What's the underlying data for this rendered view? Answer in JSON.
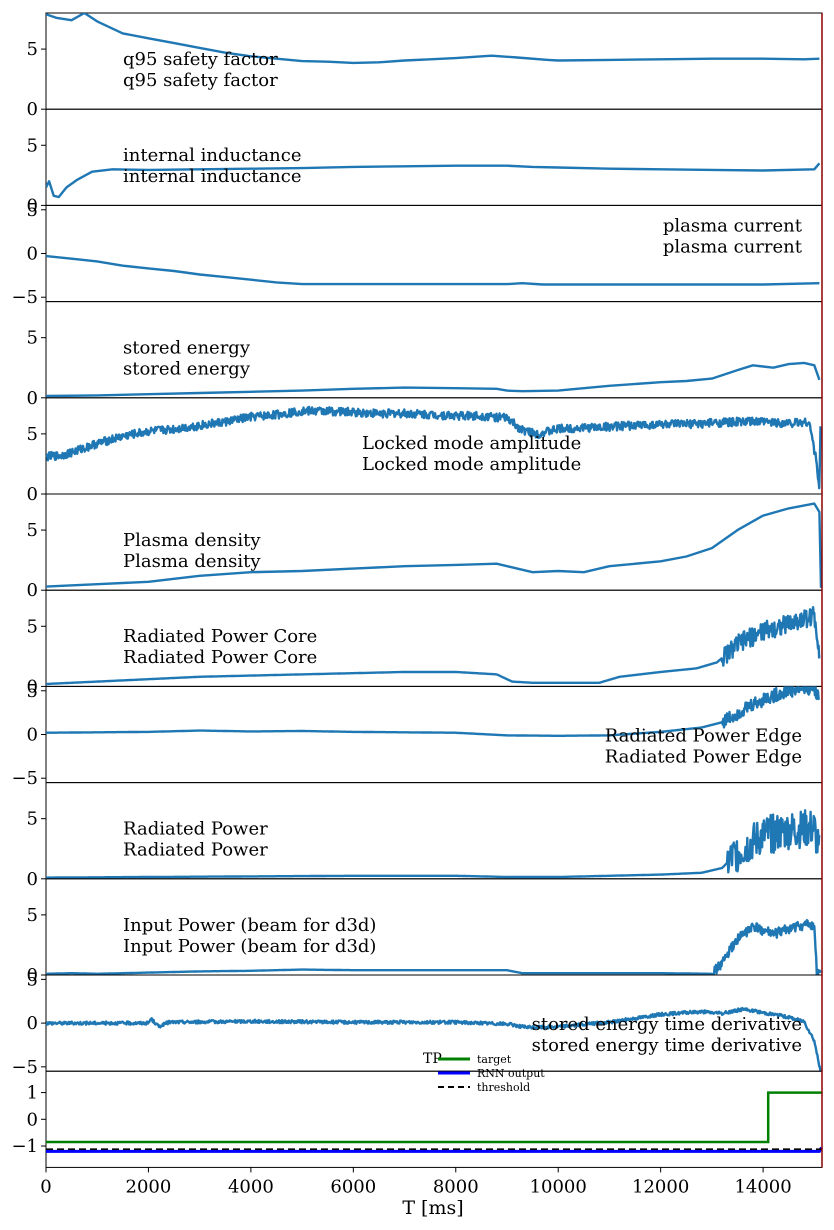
{
  "chart_data": {
    "type": "line",
    "xlabel": "T [ms]",
    "xlim": [
      0,
      15150
    ],
    "xticks": [
      0,
      2000,
      4000,
      6000,
      8000,
      10000,
      12000,
      14000
    ],
    "vline_x": 15150,
    "colors": {
      "signal": "#1f77b4",
      "target": "#008000",
      "rnn": "#0000ff",
      "threshold": "#000000",
      "vline": "#8b0000"
    },
    "panels": [
      {
        "label": "q95 safety factor",
        "label_pos": "upper-left",
        "ylim": [
          0,
          8
        ],
        "yticks": [
          0,
          5
        ],
        "points": [
          [
            0,
            7.9
          ],
          [
            200,
            7.6
          ],
          [
            500,
            7.4
          ],
          [
            750,
            8
          ],
          [
            1000,
            7.3
          ],
          [
            1500,
            6.3
          ],
          [
            2000,
            5.9
          ],
          [
            2500,
            5.5
          ],
          [
            3000,
            5.1
          ],
          [
            3500,
            4.7
          ],
          [
            4000,
            4.4
          ],
          [
            4500,
            4.2
          ],
          [
            5000,
            4.0
          ],
          [
            5500,
            3.95
          ],
          [
            6000,
            3.85
          ],
          [
            6500,
            3.9
          ],
          [
            7000,
            4.05
          ],
          [
            7500,
            4.15
          ],
          [
            8000,
            4.25
          ],
          [
            8700,
            4.45
          ],
          [
            9200,
            4.3
          ],
          [
            9800,
            4.1
          ],
          [
            10000,
            4.05
          ],
          [
            11000,
            4.1
          ],
          [
            12000,
            4.15
          ],
          [
            13000,
            4.2
          ],
          [
            14000,
            4.2
          ],
          [
            14800,
            4.15
          ],
          [
            15100,
            4.2
          ]
        ]
      },
      {
        "label": "internal inductance",
        "label_pos": "upper-left",
        "ylim": [
          0,
          8
        ],
        "yticks": [
          0,
          5
        ],
        "points": [
          [
            0,
            1.5
          ],
          [
            60,
            2.0
          ],
          [
            150,
            0.8
          ],
          [
            250,
            0.7
          ],
          [
            400,
            1.5
          ],
          [
            600,
            2.1
          ],
          [
            900,
            2.8
          ],
          [
            1300,
            3.0
          ],
          [
            2000,
            2.95
          ],
          [
            3000,
            3.0
          ],
          [
            4000,
            3.05
          ],
          [
            5000,
            3.1
          ],
          [
            6000,
            3.2
          ],
          [
            7000,
            3.25
          ],
          [
            8000,
            3.3
          ],
          [
            9000,
            3.3
          ],
          [
            9500,
            3.2
          ],
          [
            10000,
            3.15
          ],
          [
            11000,
            3.05
          ],
          [
            12000,
            3.0
          ],
          [
            13000,
            2.95
          ],
          [
            14000,
            2.9
          ],
          [
            15000,
            3.0
          ],
          [
            15100,
            3.5
          ]
        ]
      },
      {
        "label": "plasma current",
        "label_pos": "upper-right",
        "ylim": [
          -5.5,
          5.5
        ],
        "yticks": [
          -5,
          0,
          5
        ],
        "points": [
          [
            0,
            -0.3
          ],
          [
            500,
            -0.6
          ],
          [
            1000,
            -0.9
          ],
          [
            1500,
            -1.4
          ],
          [
            2000,
            -1.7
          ],
          [
            2500,
            -2.0
          ],
          [
            3000,
            -2.4
          ],
          [
            3500,
            -2.7
          ],
          [
            4000,
            -3.0
          ],
          [
            4500,
            -3.3
          ],
          [
            5000,
            -3.5
          ],
          [
            6000,
            -3.5
          ],
          [
            7000,
            -3.5
          ],
          [
            8000,
            -3.5
          ],
          [
            9000,
            -3.5
          ],
          [
            9300,
            -3.4
          ],
          [
            9700,
            -3.55
          ],
          [
            11000,
            -3.55
          ],
          [
            12000,
            -3.55
          ],
          [
            13000,
            -3.55
          ],
          [
            14000,
            -3.55
          ],
          [
            15100,
            -3.4
          ]
        ]
      },
      {
        "label": "stored energy",
        "label_pos": "upper-left",
        "ylim": [
          0,
          8
        ],
        "yticks": [
          0,
          5
        ],
        "points": [
          [
            0,
            0.15
          ],
          [
            1000,
            0.2
          ],
          [
            2000,
            0.3
          ],
          [
            3000,
            0.4
          ],
          [
            4000,
            0.5
          ],
          [
            5000,
            0.6
          ],
          [
            6000,
            0.75
          ],
          [
            7000,
            0.85
          ],
          [
            8000,
            0.8
          ],
          [
            8800,
            0.75
          ],
          [
            9000,
            0.6
          ],
          [
            9300,
            0.55
          ],
          [
            10000,
            0.6
          ],
          [
            11000,
            1.0
          ],
          [
            12000,
            1.3
          ],
          [
            12500,
            1.4
          ],
          [
            13000,
            1.6
          ],
          [
            13500,
            2.3
          ],
          [
            13800,
            2.7
          ],
          [
            14200,
            2.5
          ],
          [
            14500,
            2.8
          ],
          [
            14800,
            2.9
          ],
          [
            15000,
            2.7
          ],
          [
            15100,
            1.5
          ]
        ]
      },
      {
        "label": "Locked mode amplitude",
        "label_pos": "middle-center",
        "ylim": [
          0,
          8
        ],
        "yticks": [
          0,
          5
        ],
        "noise_amp": 0.35,
        "points": [
          [
            0,
            3.1
          ],
          [
            300,
            3.2
          ],
          [
            600,
            3.6
          ],
          [
            1000,
            4.2
          ],
          [
            1500,
            4.8
          ],
          [
            2000,
            5.2
          ],
          [
            2500,
            5.4
          ],
          [
            3000,
            5.7
          ],
          [
            3500,
            6.0
          ],
          [
            4000,
            6.4
          ],
          [
            4500,
            6.6
          ],
          [
            5000,
            6.9
          ],
          [
            5500,
            6.9
          ],
          [
            6000,
            6.8
          ],
          [
            6500,
            6.7
          ],
          [
            7000,
            6.7
          ],
          [
            7500,
            6.6
          ],
          [
            8000,
            6.5
          ],
          [
            8500,
            6.5
          ],
          [
            9000,
            6.3
          ],
          [
            9300,
            5.3
          ],
          [
            9600,
            5.0
          ],
          [
            10000,
            5.4
          ],
          [
            10500,
            5.5
          ],
          [
            11000,
            5.6
          ],
          [
            11500,
            5.7
          ],
          [
            12000,
            5.8
          ],
          [
            12500,
            5.8
          ],
          [
            13000,
            5.9
          ],
          [
            13500,
            6.0
          ],
          [
            14000,
            6.0
          ],
          [
            14500,
            5.9
          ],
          [
            14900,
            6.0
          ],
          [
            15050,
            2.5
          ],
          [
            15100,
            0.2
          ],
          [
            15130,
            8.0
          ]
        ]
      },
      {
        "label": "Plasma density",
        "label_pos": "upper-left",
        "ylim": [
          0,
          8
        ],
        "yticks": [
          0,
          5
        ],
        "points": [
          [
            0,
            0.3
          ],
          [
            1000,
            0.5
          ],
          [
            2000,
            0.7
          ],
          [
            3000,
            1.2
          ],
          [
            4000,
            1.5
          ],
          [
            5000,
            1.6
          ],
          [
            6000,
            1.8
          ],
          [
            7000,
            2.0
          ],
          [
            8000,
            2.1
          ],
          [
            8800,
            2.2
          ],
          [
            9200,
            1.8
          ],
          [
            9500,
            1.5
          ],
          [
            10000,
            1.6
          ],
          [
            10500,
            1.5
          ],
          [
            11000,
            2.0
          ],
          [
            12000,
            2.4
          ],
          [
            12500,
            2.8
          ],
          [
            13000,
            3.5
          ],
          [
            13500,
            5.0
          ],
          [
            14000,
            6.2
          ],
          [
            14500,
            6.8
          ],
          [
            15000,
            7.2
          ],
          [
            15100,
            6.5
          ],
          [
            15130,
            0.2
          ]
        ]
      },
      {
        "label": "Radiated Power Core",
        "label_pos": "upper-left",
        "ylim": [
          0,
          8
        ],
        "yticks": [
          0,
          5
        ],
        "noise_start": 13200,
        "noise_amp": 0.8,
        "points": [
          [
            0,
            0.2
          ],
          [
            1000,
            0.4
          ],
          [
            2000,
            0.6
          ],
          [
            3000,
            0.8
          ],
          [
            4000,
            0.9
          ],
          [
            5000,
            1.0
          ],
          [
            6000,
            1.1
          ],
          [
            7000,
            1.2
          ],
          [
            8000,
            1.2
          ],
          [
            8800,
            1.0
          ],
          [
            9100,
            0.4
          ],
          [
            9500,
            0.3
          ],
          [
            10000,
            0.3
          ],
          [
            10800,
            0.3
          ],
          [
            11200,
            0.8
          ],
          [
            12000,
            1.2
          ],
          [
            12700,
            1.5
          ],
          [
            13100,
            2.0
          ],
          [
            13500,
            3.5
          ],
          [
            14000,
            4.6
          ],
          [
            14500,
            5.2
          ],
          [
            15000,
            5.9
          ],
          [
            15100,
            3.0
          ]
        ]
      },
      {
        "label": "Radiated Power Edge",
        "label_pos": "middle-right",
        "ylim": [
          -5.5,
          5.5
        ],
        "yticks": [
          -5,
          0,
          5
        ],
        "noise_start": 13200,
        "noise_amp": 0.8,
        "points": [
          [
            0,
            0.2
          ],
          [
            1000,
            0.25
          ],
          [
            2000,
            0.3
          ],
          [
            3000,
            0.45
          ],
          [
            4000,
            0.35
          ],
          [
            5000,
            0.4
          ],
          [
            6000,
            0.3
          ],
          [
            7000,
            0.25
          ],
          [
            8000,
            0.2
          ],
          [
            9000,
            -0.1
          ],
          [
            10000,
            -0.15
          ],
          [
            11000,
            -0.1
          ],
          [
            12000,
            0.3
          ],
          [
            12800,
            0.8
          ],
          [
            13200,
            1.4
          ],
          [
            13600,
            2.8
          ],
          [
            14000,
            4.0
          ],
          [
            14500,
            5.0
          ],
          [
            15000,
            5.4
          ],
          [
            15100,
            4.0
          ]
        ]
      },
      {
        "label": "Radiated Power",
        "label_pos": "upper-left",
        "ylim": [
          0,
          8
        ],
        "yticks": [
          0,
          5
        ],
        "noise_start": 13300,
        "noise_amp": 1.6,
        "points": [
          [
            0,
            0.1
          ],
          [
            2000,
            0.15
          ],
          [
            4000,
            0.2
          ],
          [
            6000,
            0.25
          ],
          [
            8000,
            0.25
          ],
          [
            9000,
            0.15
          ],
          [
            10000,
            0.15
          ],
          [
            11000,
            0.25
          ],
          [
            12000,
            0.35
          ],
          [
            12800,
            0.5
          ],
          [
            13200,
            0.9
          ],
          [
            13500,
            2.2
          ],
          [
            14000,
            3.6
          ],
          [
            14500,
            4.0
          ],
          [
            15000,
            4.2
          ],
          [
            15100,
            2.0
          ]
        ]
      },
      {
        "label": "Input Power (beam for d3d)",
        "label_pos": "upper-left",
        "ylim": [
          0,
          8
        ],
        "yticks": [
          0,
          5
        ],
        "noise_start": 13000,
        "noise_amp": 0.4,
        "points": [
          [
            0,
            0.1
          ],
          [
            500,
            0.15
          ],
          [
            1000,
            0.1
          ],
          [
            2000,
            0.2
          ],
          [
            3000,
            0.3
          ],
          [
            4000,
            0.35
          ],
          [
            5000,
            0.45
          ],
          [
            6000,
            0.4
          ],
          [
            7000,
            0.4
          ],
          [
            8000,
            0.4
          ],
          [
            9000,
            0.4
          ],
          [
            9300,
            0.15
          ],
          [
            10000,
            0.15
          ],
          [
            11000,
            0.15
          ],
          [
            12000,
            0.15
          ],
          [
            13000,
            0.1
          ],
          [
            13200,
            1.0
          ],
          [
            13500,
            3.0
          ],
          [
            13800,
            4.0
          ],
          [
            14200,
            3.4
          ],
          [
            14600,
            4.0
          ],
          [
            14900,
            4.2
          ],
          [
            15000,
            4.0
          ],
          [
            15050,
            0.1
          ],
          [
            15100,
            0.1
          ],
          [
            15130,
            0.8
          ]
        ]
      },
      {
        "label": "stored energy time derivative",
        "label_pos": "middle-right",
        "ylim": [
          -5.5,
          5.5
        ],
        "yticks": [
          -5,
          0,
          5
        ],
        "noise_amp": 0.18,
        "points": [
          [
            0,
            0
          ],
          [
            2000,
            0
          ],
          [
            2050,
            0.5
          ],
          [
            2200,
            -0.4
          ],
          [
            2400,
            0.1
          ],
          [
            4000,
            0.2
          ],
          [
            6000,
            0.1
          ],
          [
            8000,
            0.1
          ],
          [
            9000,
            -0.1
          ],
          [
            9400,
            -0.5
          ],
          [
            10000,
            -0.4
          ],
          [
            11000,
            0.1
          ],
          [
            12000,
            1.0
          ],
          [
            12800,
            1.3
          ],
          [
            13200,
            1.1
          ],
          [
            13600,
            1.6
          ],
          [
            14000,
            1.2
          ],
          [
            14400,
            0.8
          ],
          [
            14800,
            0.2
          ],
          [
            15000,
            -2.0
          ],
          [
            15120,
            -5.5
          ]
        ]
      }
    ],
    "prediction_panel": {
      "ylim": [
        -1.8,
        1.8
      ],
      "yticks": [
        -1,
        0,
        1
      ],
      "legend_title": "TP",
      "legend": [
        "target",
        "RNN output",
        "threshold"
      ],
      "target": [
        [
          0,
          -0.85
        ],
        [
          14100,
          -0.85
        ],
        [
          14100,
          1
        ],
        [
          15150,
          1
        ]
      ],
      "rnn_output": [
        [
          0,
          -1.2
        ],
        [
          15100,
          -1.2
        ],
        [
          15140,
          -1.05
        ]
      ],
      "threshold": -1.12
    }
  }
}
